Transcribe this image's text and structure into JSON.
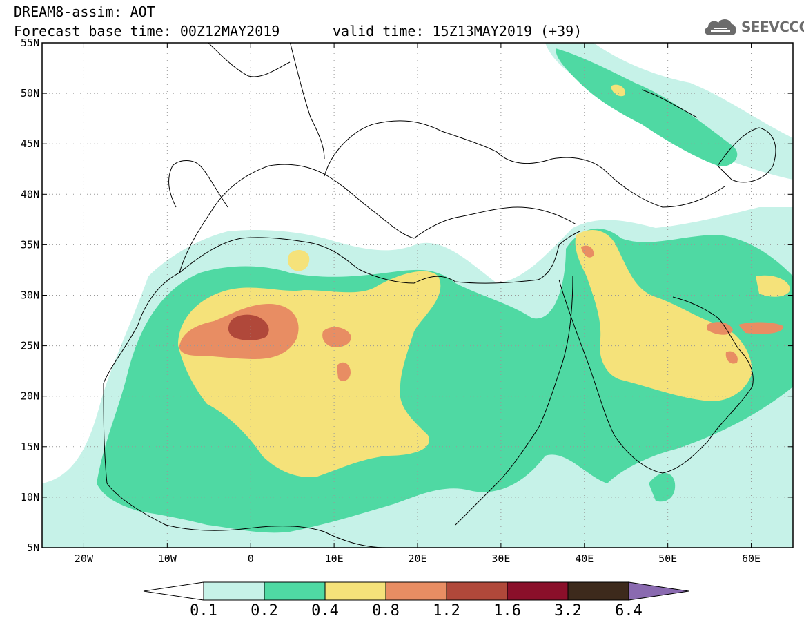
{
  "title": {
    "line1": "DREAM8-assim: AOT",
    "line2": "Forecast base time: 00Z12MAY2019",
    "valid": "valid time: 15Z13MAY2019 (+39)"
  },
  "logo": {
    "text": "SEEVCCC",
    "icon": "cloud-icon"
  },
  "map": {
    "lon_range": [
      -25,
      65
    ],
    "lat_range": [
      5,
      55
    ],
    "lat_ticks": [
      "55N",
      "50N",
      "45N",
      "40N",
      "35N",
      "30N",
      "25N",
      "20N",
      "15N",
      "10N",
      "5N"
    ],
    "lon_ticks": [
      "20W",
      "10W",
      "0",
      "10E",
      "20E",
      "30E",
      "40E",
      "50E",
      "60E"
    ],
    "grid": "dotted",
    "colors": {
      "c01": "#c6f2e8",
      "c02": "#4fd9a3",
      "c04": "#f5e27a",
      "c08": "#e88d63",
      "c12": "#b0483a",
      "c16": "#8a0f2a",
      "c32": "#3d2a1c",
      "c64": "#8a6ab0"
    }
  },
  "colorbar": {
    "labels": [
      "0.1",
      "0.2",
      "0.4",
      "0.8",
      "1.2",
      "1.6",
      "3.2",
      "6.4"
    ],
    "colors": [
      "#c6f2e8",
      "#4fd9a3",
      "#f5e27a",
      "#e88d63",
      "#b0483a",
      "#8a0f2a",
      "#3d2a1c"
    ],
    "over_color": "#8a6ab0",
    "under_color": "#ffffff"
  }
}
